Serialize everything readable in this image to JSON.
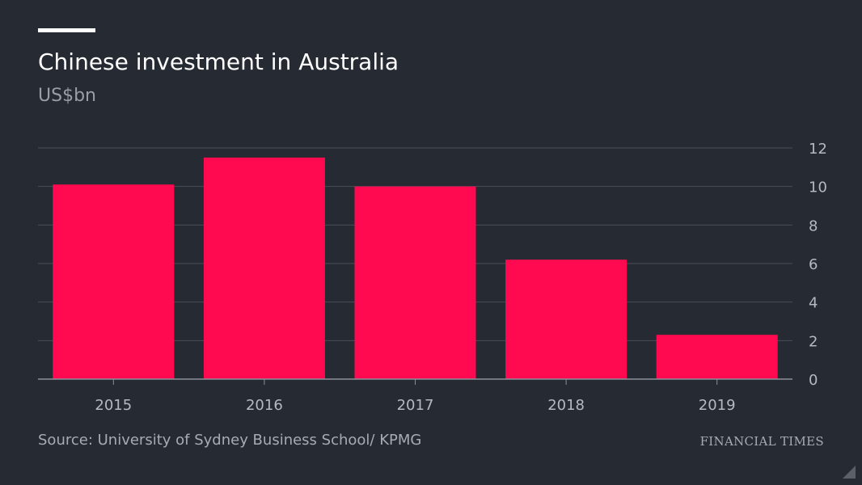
{
  "header": {
    "title": "Chinese investment in Australia",
    "subtitle": "US$bn"
  },
  "footer": {
    "source": "Source: University of Sydney Business School/ KPMG",
    "brand": "FINANCIAL TIMES"
  },
  "colors": {
    "background": "#262a33",
    "bar": "#ff0a50",
    "gridline": "#4a4e57",
    "axis": "#8b8f97",
    "tick_text": "#b5b9c0"
  },
  "chart_data": {
    "type": "bar",
    "title": "Chinese investment in Australia",
    "subtitle": "US$bn",
    "categories": [
      "2015",
      "2016",
      "2017",
      "2018",
      "2019"
    ],
    "values": [
      10.1,
      11.5,
      10.0,
      6.2,
      2.3
    ],
    "ylim": [
      0,
      12
    ],
    "yticks": [
      0,
      2,
      4,
      6,
      8,
      10,
      12
    ],
    "y_axis_position": "right",
    "grid": true,
    "xlabel": "",
    "ylabel": ""
  }
}
